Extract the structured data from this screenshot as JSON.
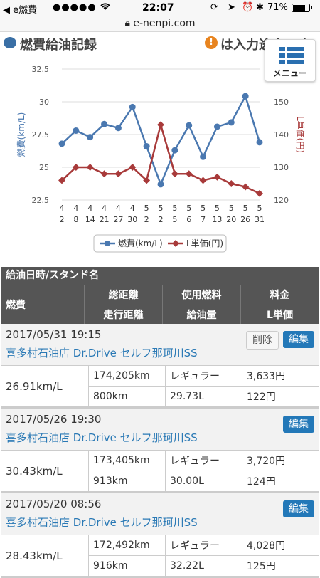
{
  "status_bar": {
    "back_app": "◀ e燃費",
    "signal": "●●●●●",
    "time": "22:07",
    "battery": "71%"
  },
  "url_bar": {
    "url": "e-nenpi.com"
  },
  "header": {
    "title": "燃費給油記録",
    "notice": "は入力途中です"
  },
  "menu": {
    "label": "メニュー"
  },
  "chart_data": {
    "type": "line",
    "x_labels": [
      [
        "4",
        "2"
      ],
      [
        "4",
        "8"
      ],
      [
        "4",
        "14"
      ],
      [
        "4",
        "21"
      ],
      [
        "4",
        "27"
      ],
      [
        "4",
        "30"
      ],
      [
        "5",
        "2"
      ],
      [
        "5",
        "2"
      ],
      [
        "5",
        "5"
      ],
      [
        "5",
        "6"
      ],
      [
        "5",
        "7"
      ],
      [
        "5",
        "13"
      ],
      [
        "5",
        "20"
      ],
      [
        "5",
        "26"
      ],
      [
        "5",
        "31"
      ]
    ],
    "series": [
      {
        "name": "燃費(km/L)",
        "axis": "left",
        "color": "#4a78b0",
        "values": [
          26.8,
          27.8,
          27.3,
          28.3,
          28.0,
          29.6,
          26.6,
          23.7,
          26.3,
          28.2,
          25.8,
          28.1,
          28.43,
          30.43,
          26.91
        ]
      },
      {
        "name": "L単価(円)",
        "axis": "right",
        "color": "#a83a3a",
        "values": [
          126,
          130,
          130,
          128,
          128,
          130,
          126,
          143,
          128,
          128,
          126,
          127,
          125,
          124,
          122
        ]
      }
    ],
    "ylabel_left": "燃費(km/L)",
    "ylabel_right": "L単価(円)",
    "ylim_left": [
      22.5,
      32.5
    ],
    "yticks_left": [
      "22.5",
      "25",
      "27.5",
      "30",
      "32.5"
    ],
    "ylim_right": [
      120,
      160
    ],
    "yticks_right": [
      "120",
      "130",
      "140",
      "150"
    ],
    "legend": "bottom",
    "grid": true
  },
  "table": {
    "header": {
      "row1": "給油日時/スタンド名",
      "fuel_economy": "燃費",
      "total_distance": "総距離",
      "trip_distance": "走行距離",
      "fuel_type": "使用燃料",
      "fuel_amount": "給油量",
      "price": "料金",
      "unit_price": "L単価"
    },
    "records": [
      {
        "datetime": "2017/05/31 19:15",
        "station": "喜多村石油店 Dr.Drive セルフ那珂川SS",
        "economy": "26.91km/L",
        "total_distance": "174,205km",
        "trip_distance": "800km",
        "fuel_type": "レギュラー",
        "fuel_amount": "29.73L",
        "price": "3,633円",
        "unit_price": "122円",
        "delete_label": "削除",
        "edit_label": "編集"
      },
      {
        "datetime": "2017/05/26 19:30",
        "station": "喜多村石油店 Dr.Drive セルフ那珂川SS",
        "economy": "30.43km/L",
        "total_distance": "173,405km",
        "trip_distance": "913km",
        "fuel_type": "レギュラー",
        "fuel_amount": "30.00L",
        "price": "3,720円",
        "unit_price": "124円",
        "edit_label": "編集"
      },
      {
        "datetime": "2017/05/20 08:56",
        "station": "喜多村石油店 Dr.Drive セルフ那珂川SS",
        "economy": "28.43km/L",
        "total_distance": "172,492km",
        "trip_distance": "916km",
        "fuel_type": "レギュラー",
        "fuel_amount": "32.22L",
        "price": "4,028円",
        "unit_price": "125円",
        "edit_label": "編集"
      }
    ]
  }
}
